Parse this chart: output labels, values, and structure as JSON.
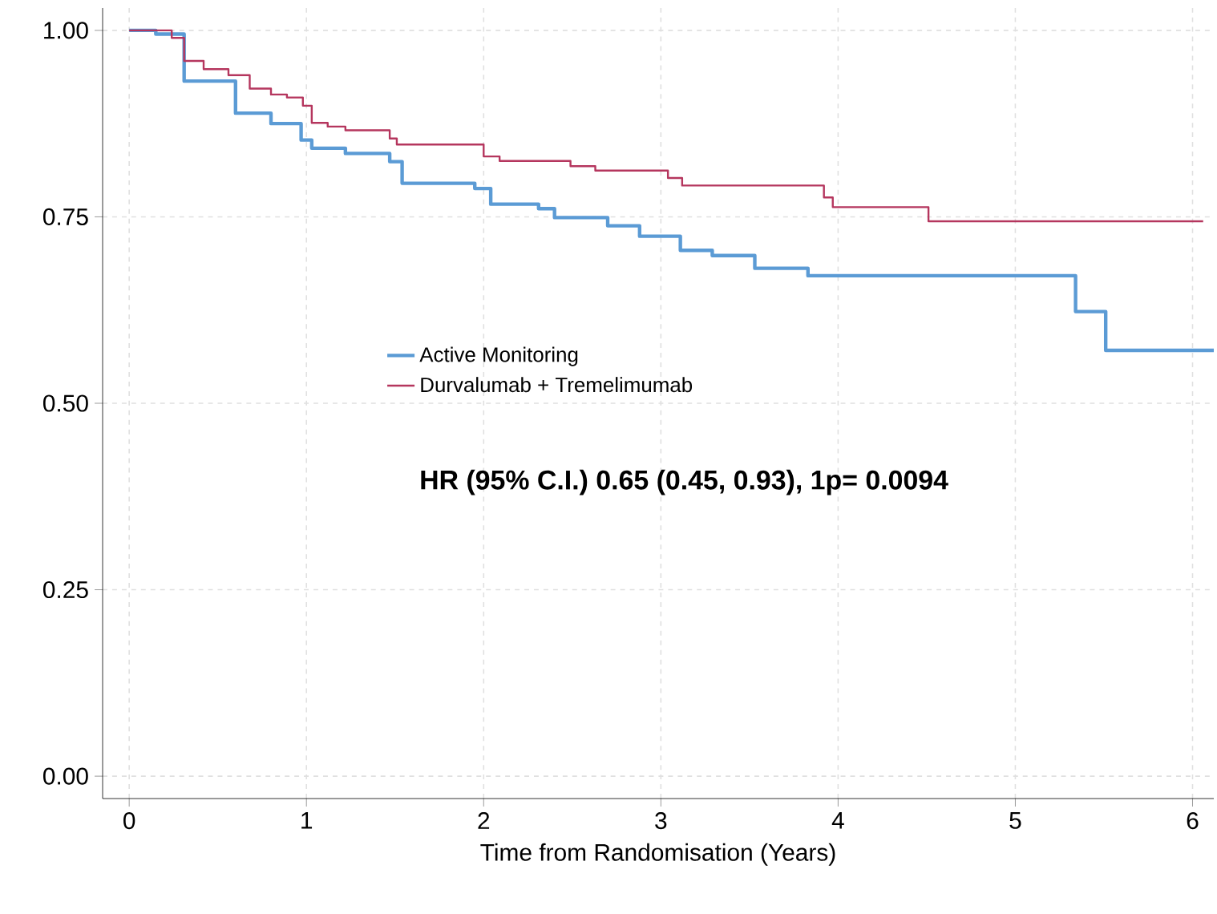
{
  "chart_data": {
    "type": "step",
    "xlabel": "Time from Randomisation (Years)",
    "xlim": [
      -0.15,
      6.12
    ],
    "ylim": [
      -0.03,
      1.03
    ],
    "xticks": [
      0,
      1,
      2,
      3,
      4,
      5,
      6
    ],
    "yticks": [
      {
        "value": 0,
        "label": "0.00"
      },
      {
        "value": 0.25,
        "label": "0.25"
      },
      {
        "value": 0.5,
        "label": "0.50"
      },
      {
        "value": 0.75,
        "label": "0.75"
      },
      {
        "value": 1,
        "label": "1.00"
      }
    ],
    "grid": true,
    "legend": "left",
    "annotations": [
      "HR (95% C.I.) 0.65 (0.45, 0.93), 1p= 0.0094"
    ],
    "series": [
      {
        "name": "Active Monitoring",
        "color": "#5b9bd5",
        "x": [
          0,
          0.15,
          0.31,
          0.6,
          0.8,
          0.97,
          1.03,
          1.22,
          1.47,
          1.54,
          1.95,
          2.04,
          2.31,
          2.4,
          2.7,
          2.88,
          3.11,
          3.29,
          3.53,
          3.83,
          5.34,
          5.51,
          6.12
        ],
        "values": [
          1,
          0.995,
          0.932,
          0.889,
          0.875,
          0.853,
          0.842,
          0.835,
          0.824,
          0.795,
          0.788,
          0.767,
          0.761,
          0.749,
          0.738,
          0.724,
          0.705,
          0.698,
          0.681,
          0.671,
          0.623,
          0.571,
          0.571
        ]
      },
      {
        "name": "Durvalumab + Tremelimumab",
        "color": "#b5365e",
        "x": [
          0,
          0.24,
          0.31,
          0.42,
          0.56,
          0.68,
          0.8,
          0.89,
          0.98,
          1.03,
          1.12,
          1.22,
          1.47,
          1.51,
          2.0,
          2.09,
          2.49,
          2.63,
          3.04,
          3.12,
          3.92,
          3.97,
          4.51,
          6.06
        ],
        "values": [
          1,
          0.99,
          0.959,
          0.948,
          0.94,
          0.922,
          0.914,
          0.91,
          0.899,
          0.876,
          0.871,
          0.866,
          0.855,
          0.847,
          0.831,
          0.825,
          0.818,
          0.812,
          0.802,
          0.792,
          0.776,
          0.763,
          0.744,
          0.744
        ]
      }
    ]
  }
}
